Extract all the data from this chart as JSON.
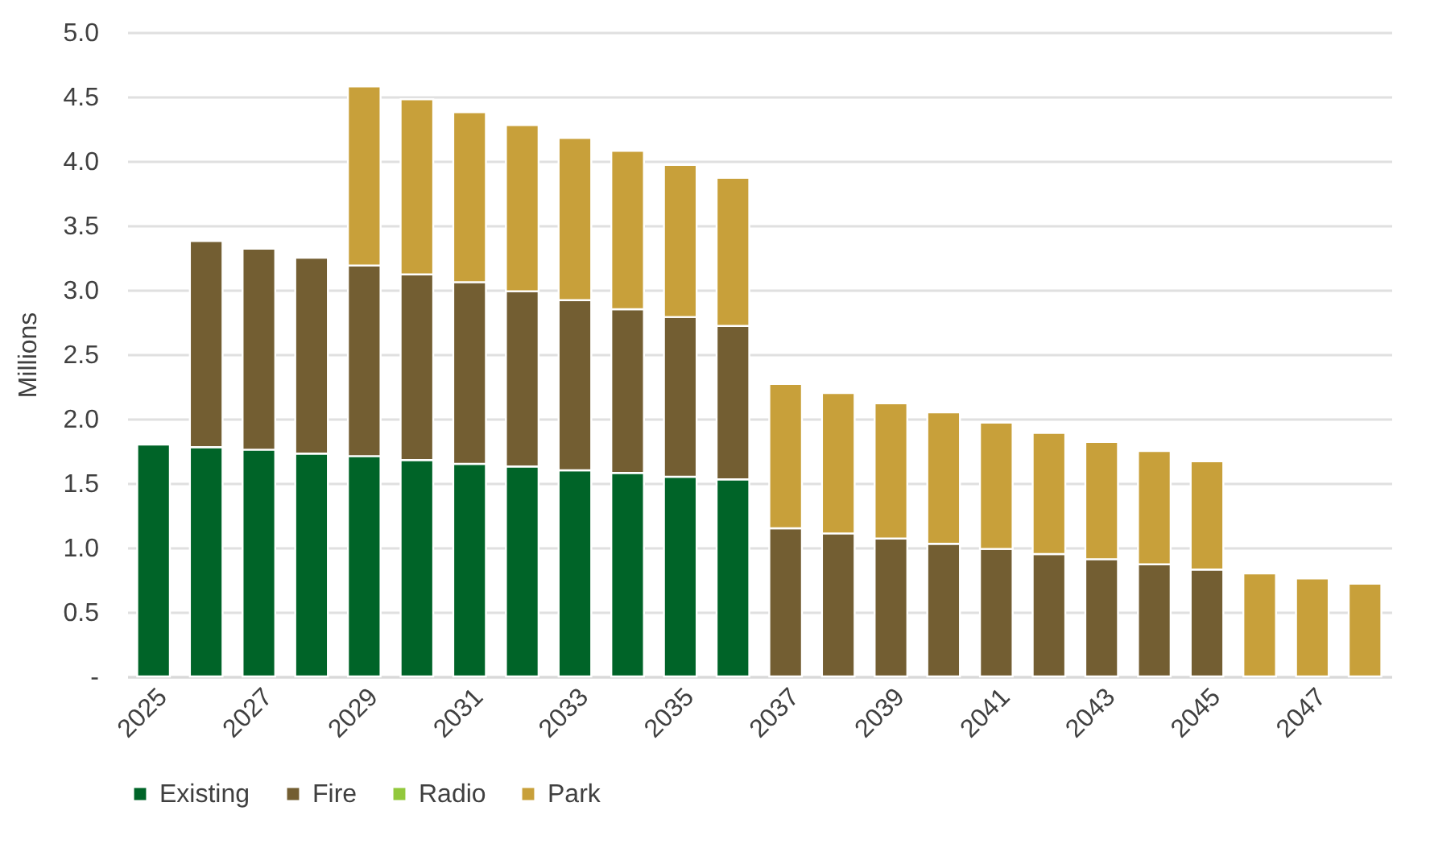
{
  "chart_data": {
    "type": "bar",
    "stacked": true,
    "ylabel": "Millions",
    "categories": [
      "2025",
      null,
      "2027",
      null,
      "2029",
      null,
      "2031",
      null,
      "2033",
      null,
      "2035",
      null,
      "2037",
      null,
      "2039",
      null,
      "2041",
      null,
      "2043",
      null,
      "2045",
      null,
      "2047",
      null
    ],
    "series": [
      {
        "name": "Existing",
        "color": "#006428",
        "values": [
          1.8,
          1.78,
          1.76,
          1.73,
          1.71,
          1.68,
          1.65,
          1.63,
          1.6,
          1.58,
          1.55,
          1.53,
          0,
          0,
          0,
          0,
          0,
          0,
          0,
          0,
          0,
          0,
          0,
          0
        ]
      },
      {
        "name": "Fire",
        "color": "#735e32",
        "values": [
          0,
          1.6,
          1.56,
          1.52,
          1.48,
          1.44,
          1.41,
          1.36,
          1.32,
          1.27,
          1.24,
          1.19,
          1.15,
          1.11,
          1.07,
          1.03,
          0.99,
          0.95,
          0.91,
          0.87,
          0.83,
          0,
          0,
          0
        ]
      },
      {
        "name": "Radio",
        "color": "#92c83c",
        "values": [
          0,
          0,
          0,
          0,
          0,
          0,
          0,
          0,
          0,
          0,
          0,
          0,
          0,
          0,
          0,
          0,
          0,
          0,
          0,
          0,
          0,
          0,
          0,
          0
        ]
      },
      {
        "name": "Park",
        "color": "#c8a03a",
        "values": [
          0,
          0,
          0,
          0,
          1.39,
          1.36,
          1.32,
          1.29,
          1.26,
          1.23,
          1.18,
          1.15,
          1.12,
          1.09,
          1.05,
          1.02,
          0.98,
          0.94,
          0.91,
          0.88,
          0.84,
          0.8,
          0.76,
          0.72
        ]
      }
    ],
    "ylim": [
      0,
      5
    ],
    "yticks": [
      {
        "value": 0,
        "label": "-"
      },
      {
        "value": 0.5,
        "label": "0.5"
      },
      {
        "value": 1,
        "label": "1.0"
      },
      {
        "value": 1.5,
        "label": "1.5"
      },
      {
        "value": 2,
        "label": "2.0"
      },
      {
        "value": 2.5,
        "label": "2.5"
      },
      {
        "value": 3,
        "label": "3.0"
      },
      {
        "value": 3.5,
        "label": "3.5"
      },
      {
        "value": 4,
        "label": "4.0"
      },
      {
        "value": 4.5,
        "label": "4.5"
      },
      {
        "value": 5,
        "label": "5.0"
      }
    ],
    "grid": "y",
    "legend": "bottom"
  }
}
